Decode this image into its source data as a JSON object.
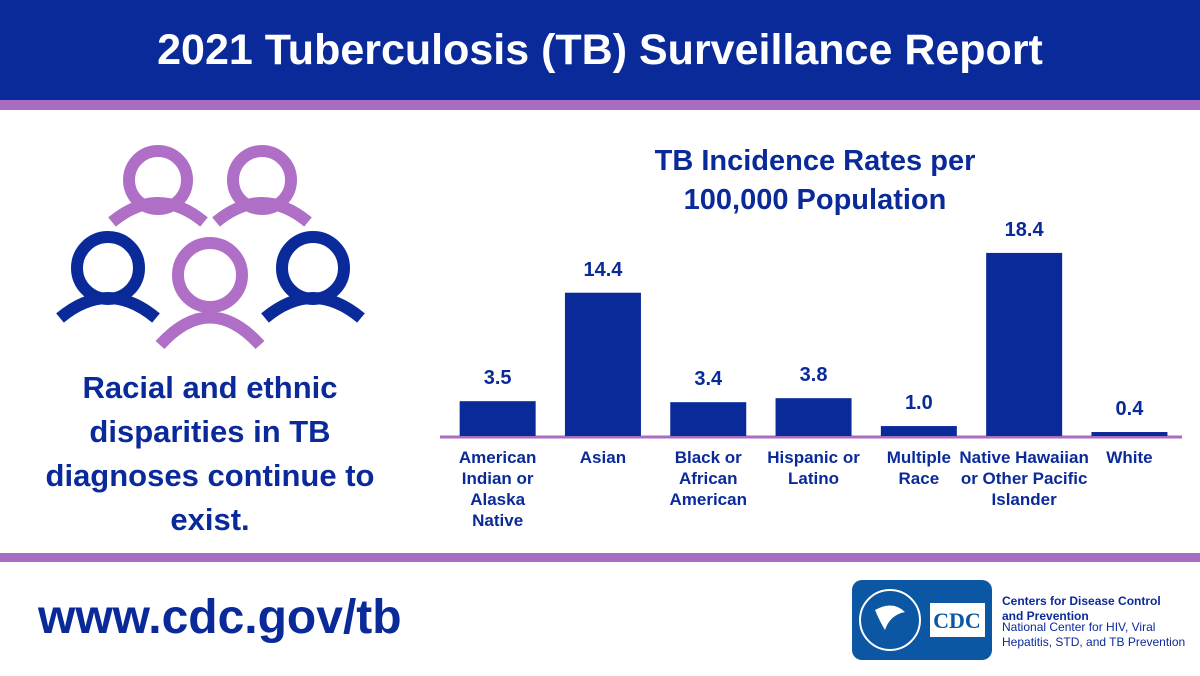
{
  "header": {
    "title": "2021 Tuberculosis (TB) Surveillance Report"
  },
  "message": "Racial and ethnic disparities in TB diagnoses continue to exist.",
  "chart_data": {
    "type": "bar",
    "title": "TB Incidence Rates per 100,000 Population",
    "categories": [
      "American Indian or Alaska Native",
      "Asian",
      "Black or African American",
      "Hispanic or Latino",
      "Multiple Race",
      "Native Hawaiian or Other Pacific Islander",
      "White"
    ],
    "values": [
      3.5,
      14.4,
      3.4,
      3.8,
      1.0,
      18.4,
      0.4
    ],
    "value_labels": [
      "3.5",
      "14.4",
      "3.4",
      "3.8",
      "1.0",
      "18.4",
      "0.4"
    ],
    "color": "#0b2a9a"
  },
  "footer": {
    "url": "www.cdc.gov/tb",
    "logo_mark": "CDC",
    "agency": "Centers for Disease Control and Prevention",
    "center": "National Center for HIV, Viral Hepatitis, STD, and TB Prevention"
  }
}
